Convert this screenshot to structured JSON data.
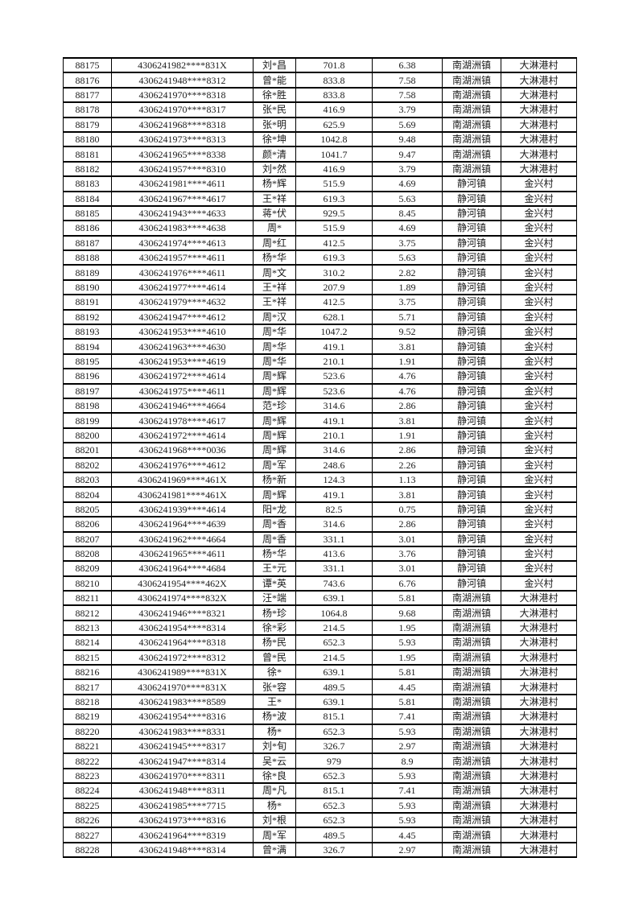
{
  "page": {
    "background_color": "#ffffff",
    "border_color": "#000000",
    "text_color": "#1a1a1a"
  },
  "table": {
    "rows": [
      [
        "88175",
        "4306241982****831X",
        "刘*昌",
        "701.8",
        "6.38",
        "南湖洲镇",
        "大淋港村"
      ],
      [
        "88176",
        "4306241948****8312",
        "曾*能",
        "833.8",
        "7.58",
        "南湖洲镇",
        "大淋港村"
      ],
      [
        "88177",
        "4306241970****8318",
        "徐*胜",
        "833.8",
        "7.58",
        "南湖洲镇",
        "大淋港村"
      ],
      [
        "88178",
        "4306241970****8317",
        "张*民",
        "416.9",
        "3.79",
        "南湖洲镇",
        "大淋港村"
      ],
      [
        "88179",
        "4306241968****8318",
        "张*明",
        "625.9",
        "5.69",
        "南湖洲镇",
        "大淋港村"
      ],
      [
        "88180",
        "4306241973****8313",
        "徐*坤",
        "1042.8",
        "9.48",
        "南湖洲镇",
        "大淋港村"
      ],
      [
        "88181",
        "4306241965****8338",
        "颜*清",
        "1041.7",
        "9.47",
        "南湖洲镇",
        "大淋港村"
      ],
      [
        "88182",
        "4306241957****8310",
        "刘*然",
        "416.9",
        "3.79",
        "南湖洲镇",
        "大淋港村"
      ],
      [
        "88183",
        "4306241981****4611",
        "杨*辉",
        "515.9",
        "4.69",
        "静河镇",
        "金兴村"
      ],
      [
        "88184",
        "4306241967****4617",
        "王*祥",
        "619.3",
        "5.63",
        "静河镇",
        "金兴村"
      ],
      [
        "88185",
        "4306241943****4633",
        "蒋*伏",
        "929.5",
        "8.45",
        "静河镇",
        "金兴村"
      ],
      [
        "88186",
        "4306241983****4638",
        "周*",
        "515.9",
        "4.69",
        "静河镇",
        "金兴村"
      ],
      [
        "88187",
        "4306241974****4613",
        "周*红",
        "412.5",
        "3.75",
        "静河镇",
        "金兴村"
      ],
      [
        "88188",
        "4306241957****4611",
        "杨*华",
        "619.3",
        "5.63",
        "静河镇",
        "金兴村"
      ],
      [
        "88189",
        "4306241976****4611",
        "周*文",
        "310.2",
        "2.82",
        "静河镇",
        "金兴村"
      ],
      [
        "88190",
        "4306241977****4614",
        "王*祥",
        "207.9",
        "1.89",
        "静河镇",
        "金兴村"
      ],
      [
        "88191",
        "4306241979****4632",
        "王*祥",
        "412.5",
        "3.75",
        "静河镇",
        "金兴村"
      ],
      [
        "88192",
        "4306241947****4612",
        "周*汉",
        "628.1",
        "5.71",
        "静河镇",
        "金兴村"
      ],
      [
        "88193",
        "4306241953****4610",
        "周*华",
        "1047.2",
        "9.52",
        "静河镇",
        "金兴村"
      ],
      [
        "88194",
        "4306241963****4630",
        "周*华",
        "419.1",
        "3.81",
        "静河镇",
        "金兴村"
      ],
      [
        "88195",
        "4306241953****4619",
        "周*华",
        "210.1",
        "1.91",
        "静河镇",
        "金兴村"
      ],
      [
        "88196",
        "4306241972****4614",
        "周*辉",
        "523.6",
        "4.76",
        "静河镇",
        "金兴村"
      ],
      [
        "88197",
        "4306241975****4611",
        "周*辉",
        "523.6",
        "4.76",
        "静河镇",
        "金兴村"
      ],
      [
        "88198",
        "4306241946****4664",
        "范*珍",
        "314.6",
        "2.86",
        "静河镇",
        "金兴村"
      ],
      [
        "88199",
        "4306241978****4617",
        "周*辉",
        "419.1",
        "3.81",
        "静河镇",
        "金兴村"
      ],
      [
        "88200",
        "4306241972****4614",
        "周*辉",
        "210.1",
        "1.91",
        "静河镇",
        "金兴村"
      ],
      [
        "88201",
        "4306241968****0036",
        "周*辉",
        "314.6",
        "2.86",
        "静河镇",
        "金兴村"
      ],
      [
        "88202",
        "4306241976****4612",
        "周*军",
        "248.6",
        "2.26",
        "静河镇",
        "金兴村"
      ],
      [
        "88203",
        "4306241969****461X",
        "杨*新",
        "124.3",
        "1.13",
        "静河镇",
        "金兴村"
      ],
      [
        "88204",
        "4306241981****461X",
        "周*辉",
        "419.1",
        "3.81",
        "静河镇",
        "金兴村"
      ],
      [
        "88205",
        "4306241939****4614",
        "阳*龙",
        "82.5",
        "0.75",
        "静河镇",
        "金兴村"
      ],
      [
        "88206",
        "4306241964****4639",
        "周*香",
        "314.6",
        "2.86",
        "静河镇",
        "金兴村"
      ],
      [
        "88207",
        "4306241962****4664",
        "周*香",
        "331.1",
        "3.01",
        "静河镇",
        "金兴村"
      ],
      [
        "88208",
        "4306241965****4611",
        "杨*华",
        "413.6",
        "3.76",
        "静河镇",
        "金兴村"
      ],
      [
        "88209",
        "4306241964****4684",
        "王*元",
        "331.1",
        "3.01",
        "静河镇",
        "金兴村"
      ],
      [
        "88210",
        "4306241954****462X",
        "谭*英",
        "743.6",
        "6.76",
        "静河镇",
        "金兴村"
      ],
      [
        "88211",
        "4306241974****832X",
        "汪*端",
        "639.1",
        "5.81",
        "南湖洲镇",
        "大淋港村"
      ],
      [
        "88212",
        "4306241946****8321",
        "杨*珍",
        "1064.8",
        "9.68",
        "南湖洲镇",
        "大淋港村"
      ],
      [
        "88213",
        "4306241954****8314",
        "徐*彩",
        "214.5",
        "1.95",
        "南湖洲镇",
        "大淋港村"
      ],
      [
        "88214",
        "4306241964****8318",
        "杨*民",
        "652.3",
        "5.93",
        "南湖洲镇",
        "大淋港村"
      ],
      [
        "88215",
        "4306241972****8312",
        "曾*民",
        "214.5",
        "1.95",
        "南湖洲镇",
        "大淋港村"
      ],
      [
        "88216",
        "4306241989****831X",
        "徐*",
        "639.1",
        "5.81",
        "南湖洲镇",
        "大淋港村"
      ],
      [
        "88217",
        "4306241970****831X",
        "张*容",
        "489.5",
        "4.45",
        "南湖洲镇",
        "大淋港村"
      ],
      [
        "88218",
        "4306241983****8589",
        "王*",
        "639.1",
        "5.81",
        "南湖洲镇",
        "大淋港村"
      ],
      [
        "88219",
        "4306241954****8316",
        "杨*波",
        "815.1",
        "7.41",
        "南湖洲镇",
        "大淋港村"
      ],
      [
        "88220",
        "4306241983****8331",
        "杨*",
        "652.3",
        "5.93",
        "南湖洲镇",
        "大淋港村"
      ],
      [
        "88221",
        "4306241945****8317",
        "刘*旬",
        "326.7",
        "2.97",
        "南湖洲镇",
        "大淋港村"
      ],
      [
        "88222",
        "4306241947****8314",
        "吴*云",
        "979",
        "8.9",
        "南湖洲镇",
        "大淋港村"
      ],
      [
        "88223",
        "4306241970****8311",
        "徐*良",
        "652.3",
        "5.93",
        "南湖洲镇",
        "大淋港村"
      ],
      [
        "88224",
        "4306241948****8311",
        "周*凡",
        "815.1",
        "7.41",
        "南湖洲镇",
        "大淋港村"
      ],
      [
        "88225",
        "4306241985****7715",
        "杨*",
        "652.3",
        "5.93",
        "南湖洲镇",
        "大淋港村"
      ],
      [
        "88226",
        "4306241973****8316",
        "刘*根",
        "652.3",
        "5.93",
        "南湖洲镇",
        "大淋港村"
      ],
      [
        "88227",
        "4306241964****8319",
        "周*军",
        "489.5",
        "4.45",
        "南湖洲镇",
        "大淋港村"
      ],
      [
        "88228",
        "4306241948****8314",
        "曾*满",
        "326.7",
        "2.97",
        "南湖洲镇",
        "大淋港村"
      ]
    ]
  }
}
